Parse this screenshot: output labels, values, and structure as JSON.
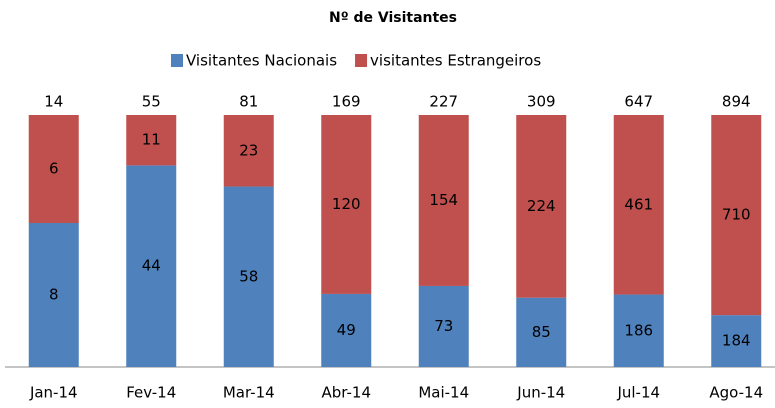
{
  "chart_data": {
    "type": "bar",
    "stacking": "percent",
    "subtitle": "Nº de Visitantes",
    "categories": [
      "Jan-14",
      "Fev-14",
      "Mar-14",
      "Abr-14",
      "Mai-14",
      "Jun-14",
      "Jul-14",
      "Ago-14"
    ],
    "series": [
      {
        "name": "Visitantes Nacionais",
        "color": "#4f81bd",
        "values": [
          8,
          44,
          58,
          49,
          73,
          85,
          186,
          184
        ]
      },
      {
        "name": "visitantes Estrangeiros",
        "color": "#c0504d",
        "values": [
          6,
          11,
          23,
          120,
          154,
          224,
          461,
          710
        ]
      }
    ],
    "totals": [
      14,
      55,
      81,
      169,
      227,
      309,
      647,
      894
    ]
  }
}
